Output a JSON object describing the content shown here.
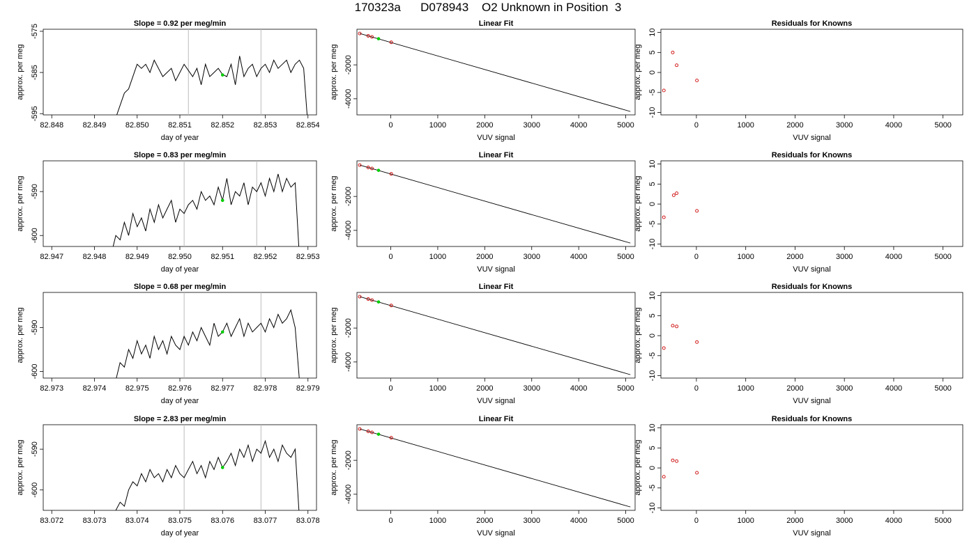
{
  "page_title": "170323a      D078943    O2 Unknown in Position  3",
  "chart_data": [
    {
      "id": "r1-timeseries",
      "type": "line",
      "title": "Slope =  0.92  per meg/min",
      "xlabel": "day of year",
      "ylabel": "approx. per meg",
      "xlim": [
        82.8478,
        82.8542
      ],
      "ylim": [
        -595.3,
        -574.5
      ],
      "xticks": [
        82.848,
        82.849,
        82.85,
        82.851,
        82.852,
        82.853,
        82.854
      ],
      "xtick_labels": [
        "82.848",
        "82.849",
        "82.850",
        "82.851",
        "82.852",
        "82.853",
        "82.854"
      ],
      "yticks": [
        -575,
        -585,
        -595
      ],
      "ytick_labels": [
        "-575",
        "-585",
        "-595"
      ],
      "vlines": [
        82.8512,
        82.8529
      ],
      "highlight": {
        "x": 82.852,
        "y": -585.6,
        "color": "#00cc00"
      },
      "series": [
        {
          "color": "#000000",
          "x": [
            82.8495,
            82.8497,
            82.8498,
            82.85,
            82.8501,
            82.8502,
            82.8503,
            82.8504,
            82.8506,
            82.8507,
            82.8508,
            82.8509,
            82.851,
            82.8511,
            82.8513,
            82.8514,
            82.8515,
            82.8516,
            82.8517,
            82.8518,
            82.8519,
            82.852,
            82.8521,
            82.8522,
            82.8523,
            82.8524,
            82.8525,
            82.8526,
            82.8527,
            82.8528,
            82.8529,
            82.853,
            82.8531,
            82.8532,
            82.8533,
            82.8534,
            82.8535,
            82.8536,
            82.8537,
            82.8538,
            82.8539,
            82.854
          ],
          "y": [
            -596,
            -590,
            -589,
            -583,
            -584,
            -583,
            -585,
            -582,
            -586,
            -585,
            -584,
            -587,
            -585,
            -583,
            -586,
            -584,
            -588,
            -583,
            -586,
            -585,
            -584,
            -585.5,
            -586,
            -583,
            -588,
            -581,
            -586,
            -584,
            -583,
            -586,
            -584,
            -583,
            -585,
            -582,
            -584,
            -583,
            -582,
            -585,
            -583,
            -582,
            -584,
            -598
          ]
        }
      ]
    },
    {
      "id": "r1-fit",
      "type": "line",
      "title": "Linear Fit",
      "xlabel": "VUV signal",
      "ylabel": "approx. per meg",
      "xlim": [
        -720,
        5200
      ],
      "ylim": [
        -4950,
        100
      ],
      "xticks": [
        0,
        1000,
        2000,
        3000,
        4000,
        5000
      ],
      "xtick_labels": [
        "0",
        "1000",
        "2000",
        "3000",
        "4000",
        "5000"
      ],
      "yticks": [
        -2000,
        -4000
      ],
      "ytick_labels": [
        "-2000",
        "-4000"
      ],
      "line": {
        "x": [
          -660,
          5100
        ],
        "y": [
          -150,
          -4750
        ]
      },
      "points": {
        "color": "#cc0000",
        "x": [
          -660,
          -480,
          -400,
          10
        ],
        "y": [
          -150,
          -290,
          -350,
          -670
        ]
      },
      "highlight": {
        "x": -260,
        "y": -460,
        "color": "#00cc00"
      }
    },
    {
      "id": "r1-residuals",
      "type": "scatter",
      "title": "Residuals for Knowns",
      "xlabel": "VUV signal",
      "ylabel": "approx. per meg",
      "xlim": [
        -720,
        5400
      ],
      "ylim": [
        -10.6,
        10.8
      ],
      "xticks": [
        0,
        1000,
        2000,
        3000,
        4000,
        5000
      ],
      "xtick_labels": [
        "0",
        "1000",
        "2000",
        "3000",
        "4000",
        "5000"
      ],
      "yticks": [
        10,
        5,
        0,
        -5,
        -10
      ],
      "ytick_labels": [
        "10",
        "5",
        "0",
        "-5",
        "-10"
      ],
      "points": {
        "color": "#cc0000",
        "x": [
          -660,
          -480,
          -400,
          10
        ],
        "y": [
          -4.5,
          5,
          1.8,
          -2
        ]
      }
    },
    {
      "id": "r2-timeseries",
      "type": "line",
      "title": "Slope =  0.83  per meg/min",
      "xlabel": "day of year",
      "ylabel": "approx. per meg",
      "xlim": [
        82.9468,
        82.9532
      ],
      "ylim": [
        -602.5,
        -583
      ],
      "xticks": [
        82.947,
        82.948,
        82.949,
        82.95,
        82.951,
        82.952,
        82.953
      ],
      "xtick_labels": [
        "82.947",
        "82.948",
        "82.949",
        "82.950",
        "82.951",
        "82.952",
        "82.953"
      ],
      "yticks": [
        -590,
        -600
      ],
      "ytick_labels": [
        "-590",
        "-600"
      ],
      "vlines": [
        82.9501,
        82.9518
      ],
      "highlight": {
        "x": 82.951,
        "y": -592,
        "color": "#00cc00"
      },
      "series": [
        {
          "color": "#000000",
          "x": [
            82.9484,
            82.9485,
            82.9486,
            82.9487,
            82.9488,
            82.9489,
            82.949,
            82.9491,
            82.9492,
            82.9493,
            82.9494,
            82.9495,
            82.9496,
            82.9497,
            82.9498,
            82.9499,
            82.95,
            82.9501,
            82.9502,
            82.9503,
            82.9504,
            82.9505,
            82.9506,
            82.9507,
            82.9508,
            82.9509,
            82.951,
            82.9511,
            82.9512,
            82.9513,
            82.9514,
            82.9515,
            82.9516,
            82.9517,
            82.9518,
            82.9519,
            82.952,
            82.9521,
            82.9522,
            82.9523,
            82.9524,
            82.9525,
            82.9526,
            82.9527,
            82.9528
          ],
          "y": [
            -604,
            -600,
            -601,
            -597,
            -600,
            -595,
            -598,
            -596,
            -599,
            -594,
            -597,
            -593,
            -596,
            -594,
            -592,
            -597,
            -594,
            -595,
            -593,
            -592,
            -594,
            -590,
            -592,
            -591,
            -593,
            -589,
            -592,
            -587,
            -593,
            -590,
            -591,
            -588,
            -593,
            -589,
            -590,
            -588,
            -591,
            -587,
            -590,
            -586,
            -590,
            -587,
            -589,
            -588,
            -605
          ]
        }
      ]
    },
    {
      "id": "r2-fit",
      "type": "line",
      "title": "Linear Fit",
      "xlabel": "VUV signal",
      "ylabel": "approx. per meg",
      "xlim": [
        -720,
        5200
      ],
      "ylim": [
        -4950,
        100
      ],
      "xticks": [
        0,
        1000,
        2000,
        3000,
        4000,
        5000
      ],
      "xtick_labels": [
        "0",
        "1000",
        "2000",
        "3000",
        "4000",
        "5000"
      ],
      "yticks": [
        -2000,
        -4000
      ],
      "ytick_labels": [
        "-2000",
        "-4000"
      ],
      "line": {
        "x": [
          -660,
          5100
        ],
        "y": [
          -150,
          -4750
        ]
      },
      "points": {
        "color": "#cc0000",
        "x": [
          -660,
          -480,
          -400,
          10
        ],
        "y": [
          -150,
          -290,
          -350,
          -670
        ]
      },
      "highlight": {
        "x": -260,
        "y": -460,
        "color": "#00cc00"
      }
    },
    {
      "id": "r2-residuals",
      "type": "scatter",
      "title": "Residuals for Knowns",
      "xlabel": "VUV signal",
      "ylabel": "approx. per meg",
      "xlim": [
        -720,
        5400
      ],
      "ylim": [
        -10.6,
        10.8
      ],
      "xticks": [
        0,
        1000,
        2000,
        3000,
        4000,
        5000
      ],
      "xtick_labels": [
        "0",
        "1000",
        "2000",
        "3000",
        "4000",
        "5000"
      ],
      "yticks": [
        10,
        5,
        0,
        -5,
        -10
      ],
      "ytick_labels": [
        "10",
        "5",
        "0",
        "-5",
        "-10"
      ],
      "points": {
        "color": "#cc0000",
        "x": [
          -660,
          -460,
          -400,
          10
        ],
        "y": [
          -3.3,
          2.2,
          2.7,
          -1.7
        ]
      }
    },
    {
      "id": "r3-timeseries",
      "type": "line",
      "title": "Slope =  0.68  per meg/min",
      "xlabel": "day of year",
      "ylabel": "approx. per meg",
      "xlim": [
        82.9728,
        82.9792
      ],
      "ylim": [
        -601.5,
        -582
      ],
      "xticks": [
        82.973,
        82.974,
        82.975,
        82.976,
        82.977,
        82.978,
        82.979
      ],
      "xtick_labels": [
        "82.973",
        "82.974",
        "82.975",
        "82.976",
        "82.977",
        "82.978",
        "82.979"
      ],
      "yticks": [
        -590,
        -600
      ],
      "ytick_labels": [
        "-590",
        "-600"
      ],
      "vlines": [
        82.9761,
        82.9779
      ],
      "highlight": {
        "x": 82.977,
        "y": -591,
        "color": "#00cc00"
      },
      "series": [
        {
          "color": "#000000",
          "x": [
            82.9745,
            82.9746,
            82.9747,
            82.9748,
            82.9749,
            82.975,
            82.9751,
            82.9752,
            82.9753,
            82.9754,
            82.9755,
            82.9756,
            82.9757,
            82.9758,
            82.9759,
            82.976,
            82.9761,
            82.9762,
            82.9763,
            82.9764,
            82.9765,
            82.9766,
            82.9767,
            82.9768,
            82.9769,
            82.977,
            82.9771,
            82.9772,
            82.9773,
            82.9774,
            82.9775,
            82.9776,
            82.9777,
            82.9778,
            82.9779,
            82.978,
            82.9781,
            82.9782,
            82.9783,
            82.9784,
            82.9785,
            82.9786,
            82.9787,
            82.9788
          ],
          "y": [
            -602,
            -598,
            -599,
            -595,
            -597,
            -593,
            -596,
            -594,
            -597,
            -592,
            -595,
            -593,
            -596,
            -592,
            -594,
            -595,
            -592,
            -594,
            -591,
            -593,
            -590,
            -592,
            -594,
            -589,
            -592,
            -591,
            -589,
            -592,
            -590,
            -588,
            -592,
            -589,
            -591,
            -590,
            -589,
            -591,
            -588,
            -590,
            -587,
            -589,
            -588,
            -586,
            -590,
            -602
          ]
        }
      ]
    },
    {
      "id": "r3-fit",
      "type": "line",
      "title": "Linear Fit",
      "xlabel": "VUV signal",
      "ylabel": "approx. per meg",
      "xlim": [
        -720,
        5200
      ],
      "ylim": [
        -4950,
        100
      ],
      "xticks": [
        0,
        1000,
        2000,
        3000,
        4000,
        5000
      ],
      "xtick_labels": [
        "0",
        "1000",
        "2000",
        "3000",
        "4000",
        "5000"
      ],
      "yticks": [
        -2000,
        -4000
      ],
      "ytick_labels": [
        "-2000",
        "-4000"
      ],
      "line": {
        "x": [
          -660,
          5100
        ],
        "y": [
          -150,
          -4750
        ]
      },
      "points": {
        "color": "#cc0000",
        "x": [
          -660,
          -480,
          -400,
          10
        ],
        "y": [
          -150,
          -290,
          -350,
          -670
        ]
      },
      "highlight": {
        "x": -260,
        "y": -460,
        "color": "#00cc00"
      }
    },
    {
      "id": "r3-residuals",
      "type": "scatter",
      "title": "Residuals for Knowns",
      "xlabel": "VUV signal",
      "ylabel": "approx. per meg",
      "xlim": [
        -720,
        5400
      ],
      "ylim": [
        -10.6,
        10.8
      ],
      "xticks": [
        0,
        1000,
        2000,
        3000,
        4000,
        5000
      ],
      "xtick_labels": [
        "0",
        "1000",
        "2000",
        "3000",
        "4000",
        "5000"
      ],
      "yticks": [
        10,
        5,
        0,
        -5,
        -10
      ],
      "ytick_labels": [
        "10",
        "5",
        "0",
        "-5",
        "-10"
      ],
      "points": {
        "color": "#cc0000",
        "x": [
          -660,
          -480,
          -400,
          10
        ],
        "y": [
          -3.1,
          2.5,
          2.3,
          -1.6
        ]
      }
    },
    {
      "id": "r4-timeseries",
      "type": "line",
      "title": "Slope =  2.83  per meg/min",
      "xlabel": "day of year",
      "ylabel": "approx. per meg",
      "xlim": [
        83.0718,
        83.0782
      ],
      "ylim": [
        -605,
        -584
      ],
      "xticks": [
        83.072,
        83.073,
        83.074,
        83.075,
        83.076,
        83.077,
        83.078
      ],
      "xtick_labels": [
        "83.072",
        "83.073",
        "83.074",
        "83.075",
        "83.076",
        "83.077",
        "83.078"
      ],
      "yticks": [
        -590,
        -600
      ],
      "ytick_labels": [
        "-590",
        "-600"
      ],
      "vlines": [
        83.0751,
        83.0769
      ],
      "highlight": {
        "x": 83.076,
        "y": -594.5,
        "color": "#00cc00"
      },
      "series": [
        {
          "color": "#000000",
          "x": [
            83.0735,
            83.0736,
            83.0737,
            83.0738,
            83.0739,
            83.074,
            83.0741,
            83.0742,
            83.0743,
            83.0744,
            83.0745,
            83.0746,
            83.0747,
            83.0748,
            83.0749,
            83.075,
            83.0751,
            83.0752,
            83.0753,
            83.0754,
            83.0755,
            83.0756,
            83.0757,
            83.0758,
            83.0759,
            83.076,
            83.0761,
            83.0762,
            83.0763,
            83.0764,
            83.0765,
            83.0766,
            83.0767,
            83.0768,
            83.0769,
            83.077,
            83.0771,
            83.0772,
            83.0773,
            83.0774,
            83.0775,
            83.0776,
            83.0777,
            83.0778
          ],
          "y": [
            -605,
            -603,
            -604,
            -600,
            -598,
            -599,
            -596,
            -598,
            -595,
            -597,
            -596,
            -598,
            -595,
            -597,
            -594,
            -596,
            -597,
            -595,
            -593,
            -596,
            -594,
            -597,
            -593,
            -595,
            -592,
            -594.5,
            -593,
            -591,
            -594,
            -590,
            -592,
            -589,
            -593,
            -590,
            -591,
            -588,
            -592,
            -590,
            -593,
            -589,
            -591,
            -592,
            -590,
            -607
          ]
        }
      ]
    },
    {
      "id": "r4-fit",
      "type": "line",
      "title": "Linear Fit",
      "xlabel": "VUV signal",
      "ylabel": "approx. per meg",
      "xlim": [
        -720,
        5200
      ],
      "ylim": [
        -4950,
        100
      ],
      "xticks": [
        0,
        1000,
        2000,
        3000,
        4000,
        5000
      ],
      "xtick_labels": [
        "0",
        "1000",
        "2000",
        "3000",
        "4000",
        "5000"
      ],
      "yticks": [
        -2000,
        -4000
      ],
      "ytick_labels": [
        "-2000",
        "-4000"
      ],
      "line": {
        "x": [
          -660,
          5100
        ],
        "y": [
          -150,
          -4750
        ]
      },
      "points": {
        "color": "#cc0000",
        "x": [
          -660,
          -480,
          -400,
          10
        ],
        "y": [
          -150,
          -290,
          -350,
          -670
        ]
      },
      "highlight": {
        "x": -260,
        "y": -460,
        "color": "#00cc00"
      }
    },
    {
      "id": "r4-residuals",
      "type": "scatter",
      "title": "Residuals for Knowns",
      "xlabel": "VUV signal",
      "ylabel": "approx. per meg",
      "xlim": [
        -720,
        5400
      ],
      "ylim": [
        -10.6,
        10.8
      ],
      "xticks": [
        0,
        1000,
        2000,
        3000,
        4000,
        5000
      ],
      "xtick_labels": [
        "0",
        "1000",
        "2000",
        "3000",
        "4000",
        "5000"
      ],
      "yticks": [
        10,
        5,
        0,
        -5,
        -10
      ],
      "ytick_labels": [
        "10",
        "5",
        "0",
        "-5",
        "-10"
      ],
      "points": {
        "color": "#cc0000",
        "x": [
          -660,
          -480,
          -400,
          10
        ],
        "y": [
          -2.2,
          1.9,
          1.7,
          -1.2
        ]
      }
    }
  ]
}
